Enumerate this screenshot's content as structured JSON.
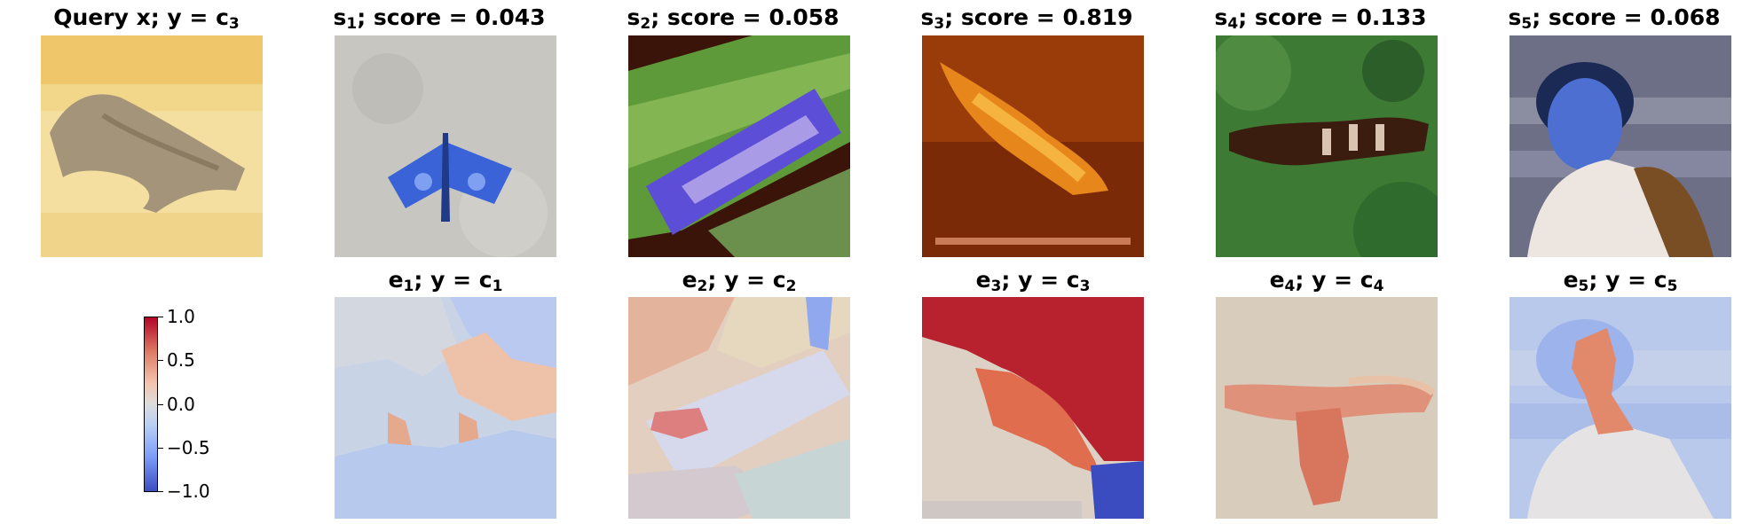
{
  "query": {
    "title_prefix": "Query x; y = c",
    "title_sub": "3"
  },
  "samples": [
    {
      "s_sub": "1",
      "score": "0.043",
      "e_sub": "1",
      "c_sub": "1"
    },
    {
      "s_sub": "2",
      "score": "0.058",
      "e_sub": "2",
      "c_sub": "2"
    },
    {
      "s_sub": "3",
      "score": "0.819",
      "e_sub": "3",
      "c_sub": "3"
    },
    {
      "s_sub": "4",
      "score": "0.133",
      "e_sub": "4",
      "c_sub": "4"
    },
    {
      "s_sub": "5",
      "score": "0.068",
      "e_sub": "5",
      "c_sub": "5"
    }
  ],
  "labels": {
    "s": "s",
    "score_sep": "; score = ",
    "e": "e",
    "y_eq_c": "; y = c"
  },
  "colorbar": {
    "ticks": [
      "1.0",
      "0.5",
      "0.0",
      "−0.5",
      "−1.0"
    ]
  },
  "colors": {
    "cmap_high": "#b40426",
    "cmap_mid": "#dddcdc",
    "cmap_low": "#3b4cc0"
  }
}
